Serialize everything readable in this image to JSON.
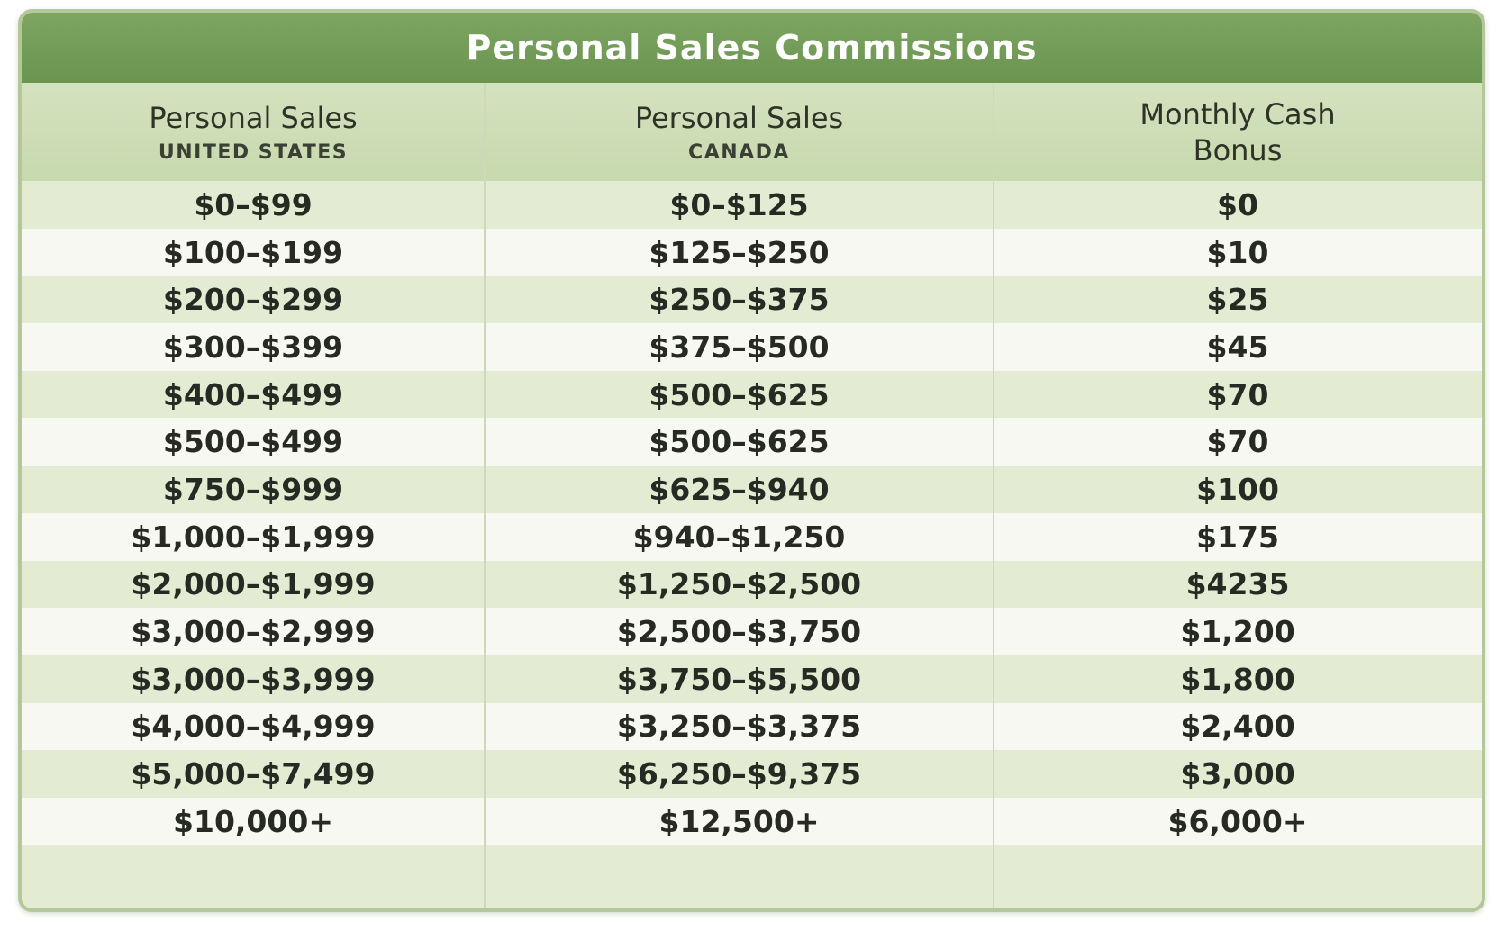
{
  "title": "Personal Sales Commissions",
  "columns": [
    {
      "main": "Personal Sales",
      "sub": "UNITED STATES"
    },
    {
      "main": "Personal Sales",
      "sub": "CANADA"
    },
    {
      "main": "Monthly Cash Bonus",
      "sub": ""
    }
  ],
  "rows": [
    [
      "$0–$99",
      "$0–$125",
      "$0"
    ],
    [
      "$100–$199",
      "$125–$250",
      "$10"
    ],
    [
      "$200–$299",
      "$250–$375",
      "$25"
    ],
    [
      "$300–$399",
      "$375–$500",
      "$45"
    ],
    [
      "$400–$499",
      "$500–$625",
      "$70"
    ],
    [
      "$500–$499",
      "$500–$625",
      "$70"
    ],
    [
      "$750–$999",
      "$625–$940",
      "$100"
    ],
    [
      "$1,000–$1,999",
      "$940–$1,250",
      "$175"
    ],
    [
      "$2,000–$1,999",
      "$1,250–$2,500",
      "$4235"
    ],
    [
      "$3,000–$2,999",
      "$2,500–$3,750",
      "$1,200"
    ],
    [
      "$3,000–$3,999",
      "$3,750–$5,500",
      "$1,800"
    ],
    [
      "$4,000–$4,999",
      "$3,250–$3,375",
      "$2,400"
    ],
    [
      "$5,000–$7,499",
      "$6,250–$9,375",
      "$3,000"
    ],
    [
      "$10,000+",
      "$12,500+",
      "$6,000+"
    ]
  ]
}
